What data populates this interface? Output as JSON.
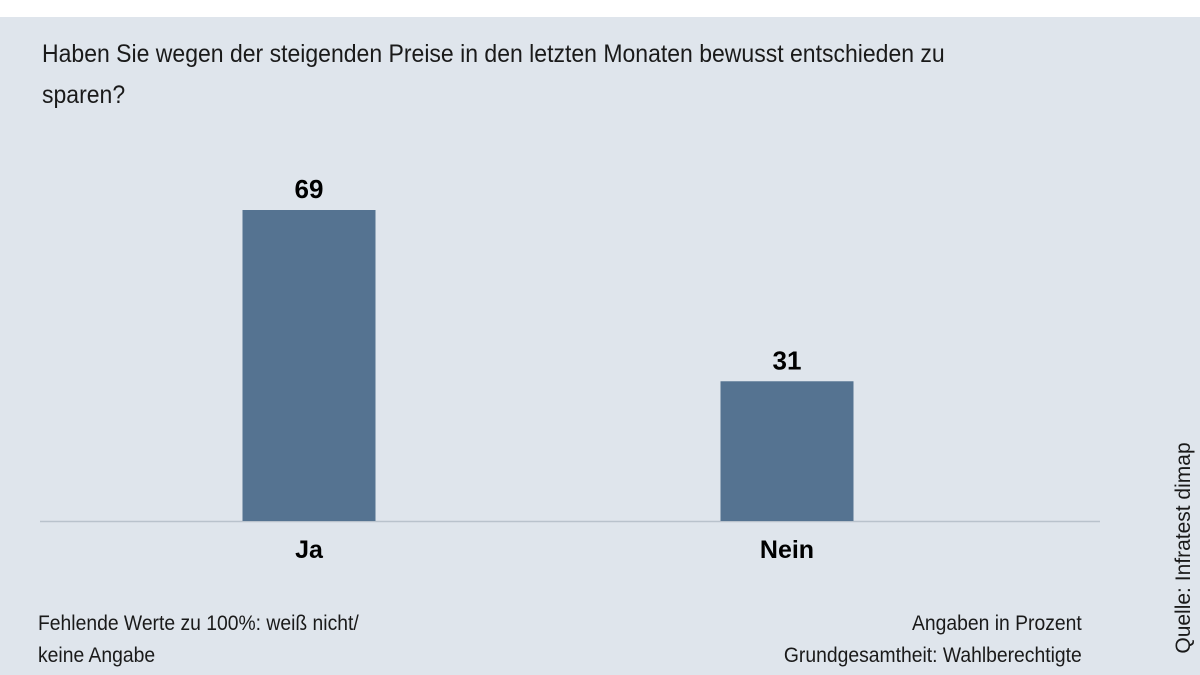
{
  "question": "Haben Sie wegen der steigenden Preise in den letzten Monaten bewusst entschieden zu sparen?",
  "notes": {
    "missing_line1": "Fehlende Werte zu 100%: weiß nicht/",
    "missing_line2": "keine Angabe",
    "unit": "Angaben in Prozent",
    "population": "Grundgesamtheit: Wahlberechtigte"
  },
  "source": "Quelle: Infratest dimap",
  "colors": {
    "bar": "#557391",
    "background": "#dfe5ec"
  },
  "chart_data": {
    "type": "bar",
    "categories": [
      "Ja",
      "Nein"
    ],
    "values": [
      69,
      31
    ],
    "data_labels": [
      "69",
      "31"
    ],
    "title": "Haben Sie wegen der steigenden Preise in den letzten Monaten bewusst entschieden zu sparen?",
    "xlabel": "",
    "ylabel": "",
    "ylim": [
      0,
      69
    ],
    "grid": false
  }
}
